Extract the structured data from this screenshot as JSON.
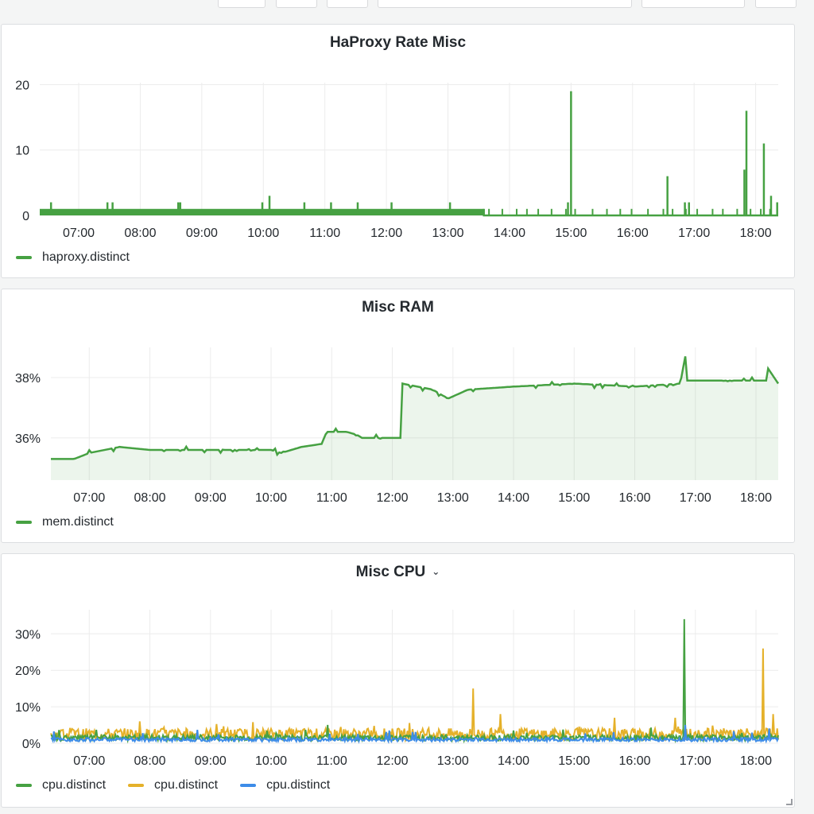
{
  "x_ticks": [
    "07:00",
    "08:00",
    "09:00",
    "10:00",
    "11:00",
    "12:00",
    "13:00",
    "14:00",
    "15:00",
    "16:00",
    "17:00",
    "18:00"
  ],
  "colors": {
    "green": "#46a142",
    "yellow": "#e5b12a",
    "blue": "#3d8ce8",
    "grid": "#ececec",
    "axis_text": "#24292e"
  },
  "panels": [
    {
      "title": "HaProxy Rate Misc",
      "legend": [
        {
          "label": "haproxy.distinct",
          "color": "#46a142"
        }
      ],
      "y_ticks": [
        "20",
        "10",
        "0"
      ]
    },
    {
      "title": "Misc RAM",
      "legend": [
        {
          "label": "mem.distinct",
          "color": "#46a142"
        }
      ],
      "y_ticks": [
        "38%",
        "36%"
      ]
    },
    {
      "title": "Misc CPU",
      "has_menu": true,
      "legend": [
        {
          "label": "cpu.distinct",
          "color": "#46a142"
        },
        {
          "label": "cpu.distinct",
          "color": "#e5b12a"
        },
        {
          "label": "cpu.distinct",
          "color": "#3d8ce8"
        }
      ],
      "y_ticks": [
        "30%",
        "20%",
        "10%",
        "0%"
      ]
    }
  ],
  "chart_data": [
    {
      "type": "line",
      "title": "HaProxy Rate Misc",
      "x_range": [
        "06:22",
        "18:22"
      ],
      "ylim": [
        0,
        20
      ],
      "series": [
        {
          "name": "haproxy.distinct",
          "color": "#46a142",
          "baseline_until_13_35": "0–1 oscillating",
          "spikes": [
            {
              "time": "06:33",
              "value": 2
            },
            {
              "time": "07:28",
              "value": 2
            },
            {
              "time": "07:33",
              "value": 2
            },
            {
              "time": "08:37",
              "value": 2
            },
            {
              "time": "08:39",
              "value": 2
            },
            {
              "time": "09:59",
              "value": 2
            },
            {
              "time": "10:06",
              "value": 3
            },
            {
              "time": "10:40",
              "value": 2
            },
            {
              "time": "11:06",
              "value": 2
            },
            {
              "time": "11:32",
              "value": 2
            },
            {
              "time": "12:05",
              "value": 2
            },
            {
              "time": "13:02",
              "value": 2
            },
            {
              "time": "14:57",
              "value": 2
            },
            {
              "time": "15:00",
              "value": 19
            },
            {
              "time": "16:34",
              "value": 6
            },
            {
              "time": "16:51",
              "value": 2
            },
            {
              "time": "16:55",
              "value": 2
            },
            {
              "time": "17:49",
              "value": 7
            },
            {
              "time": "17:51",
              "value": 16
            },
            {
              "time": "18:08",
              "value": 11
            },
            {
              "time": "18:15",
              "value": 3
            },
            {
              "time": "18:21",
              "value": 2
            }
          ]
        }
      ],
      "grid": true,
      "legend": "bottom-left"
    },
    {
      "type": "area",
      "title": "Misc RAM",
      "x_range": [
        "06:22",
        "18:22"
      ],
      "ylim": [
        35,
        39
      ],
      "series": [
        {
          "name": "mem.distinct",
          "color": "#46a142",
          "points": [
            {
              "time": "06:22",
              "value": 35.3
            },
            {
              "time": "06:45",
              "value": 35.3
            },
            {
              "time": "07:00",
              "value": 35.5
            },
            {
              "time": "07:30",
              "value": 35.7
            },
            {
              "time": "08:00",
              "value": 35.6
            },
            {
              "time": "08:30",
              "value": 35.6
            },
            {
              "time": "09:00",
              "value": 35.6
            },
            {
              "time": "09:30",
              "value": 35.6
            },
            {
              "time": "10:00",
              "value": 35.6
            },
            {
              "time": "10:10",
              "value": 35.5
            },
            {
              "time": "10:30",
              "value": 35.7
            },
            {
              "time": "10:50",
              "value": 35.8
            },
            {
              "time": "10:55",
              "value": 36.2
            },
            {
              "time": "11:15",
              "value": 36.2
            },
            {
              "time": "11:25",
              "value": 36.1
            },
            {
              "time": "11:30",
              "value": 36.0
            },
            {
              "time": "12:00",
              "value": 36.0
            },
            {
              "time": "12:08",
              "value": 36.0
            },
            {
              "time": "12:10",
              "value": 37.8
            },
            {
              "time": "12:40",
              "value": 37.6
            },
            {
              "time": "12:55",
              "value": 37.3
            },
            {
              "time": "13:15",
              "value": 37.6
            },
            {
              "time": "14:00",
              "value": 37.7
            },
            {
              "time": "15:00",
              "value": 37.8
            },
            {
              "time": "16:00",
              "value": 37.7
            },
            {
              "time": "16:45",
              "value": 37.8
            },
            {
              "time": "16:50",
              "value": 38.7
            },
            {
              "time": "16:52",
              "value": 37.9
            },
            {
              "time": "17:30",
              "value": 37.9
            },
            {
              "time": "18:10",
              "value": 37.9
            },
            {
              "time": "18:12",
              "value": 38.3
            },
            {
              "time": "18:22",
              "value": 37.8
            }
          ]
        }
      ],
      "grid": true,
      "legend": "bottom-left"
    },
    {
      "type": "line",
      "title": "Misc CPU",
      "x_range": [
        "06:22",
        "18:22"
      ],
      "ylim": [
        0,
        35
      ],
      "series": [
        {
          "name": "cpu.distinct",
          "color": "#46a142",
          "typical": "1–2%",
          "spikes": [
            {
              "time": "16:49",
              "value": 34
            },
            {
              "time": "10:56",
              "value": 5
            }
          ]
        },
        {
          "name": "cpu.distinct",
          "color": "#e5b12a",
          "typical": "1–4%",
          "spikes": [
            {
              "time": "07:50",
              "value": 6
            },
            {
              "time": "13:20",
              "value": 15
            },
            {
              "time": "13:47",
              "value": 8
            },
            {
              "time": "15:40",
              "value": 7
            },
            {
              "time": "16:40",
              "value": 7
            },
            {
              "time": "18:07",
              "value": 26
            },
            {
              "time": "18:17",
              "value": 8
            }
          ]
        },
        {
          "name": "cpu.distinct",
          "color": "#3d8ce8",
          "typical": "1%",
          "spikes": [
            {
              "time": "16:50",
              "value": 5
            }
          ]
        }
      ],
      "grid": true,
      "legend": "bottom-left"
    }
  ]
}
